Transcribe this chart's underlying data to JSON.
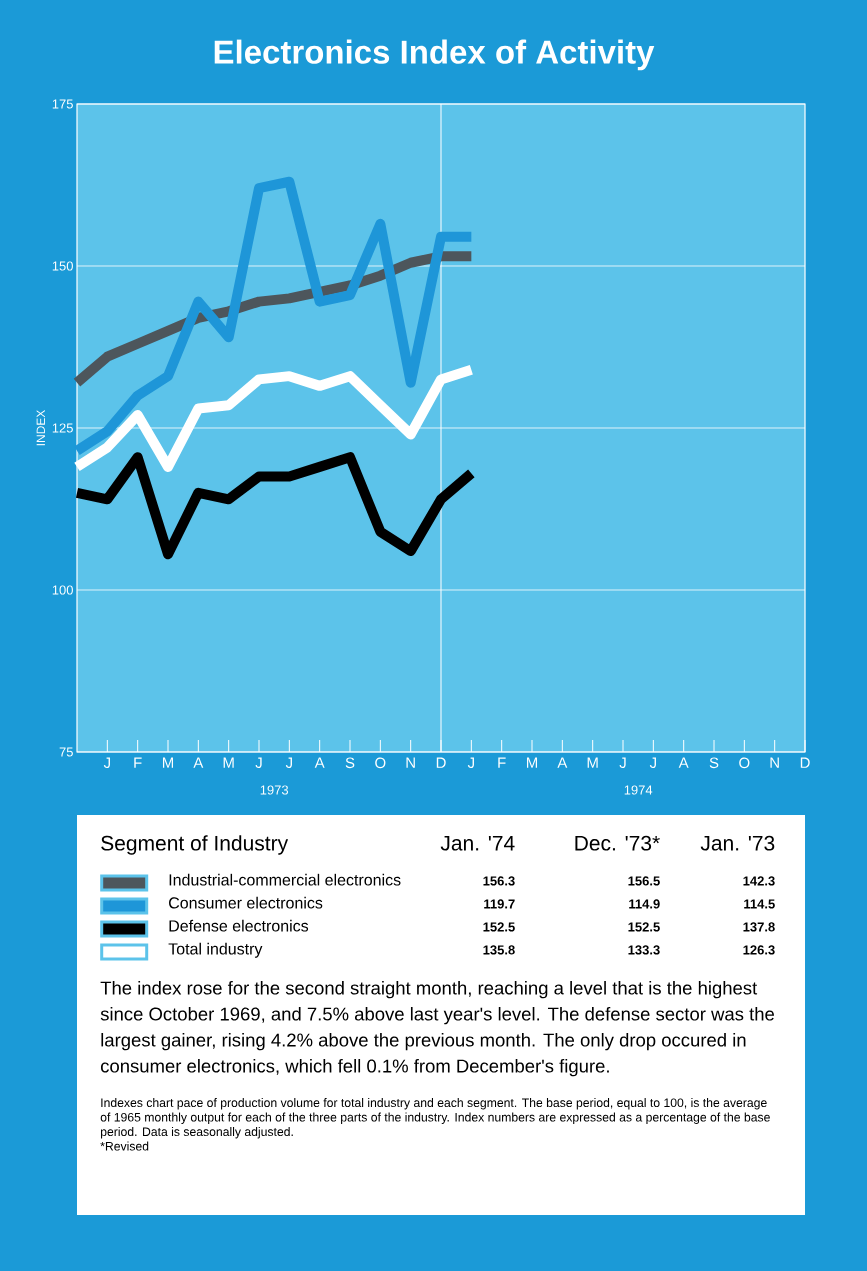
{
  "chart_data": {
    "type": "line",
    "title": "Electronics Index of Activity",
    "ylabel": "INDEX",
    "categories": [
      null,
      "J",
      "F",
      "M",
      "A",
      "M",
      "J",
      "J",
      "A",
      "S",
      "O",
      "N",
      "D",
      "J",
      "F",
      "M",
      "A",
      "M",
      "J",
      "J",
      "A",
      "S",
      "O",
      "N",
      "D"
    ],
    "series": [
      {
        "name": "Industrial-commercial electronics",
        "color": "#4d565c",
        "values": [
          132,
          136,
          138,
          140,
          142,
          143,
          144.5,
          145,
          146,
          147,
          148.5,
          150.5,
          151.5,
          151.5,
          null,
          null,
          null,
          null,
          null,
          null,
          null,
          null,
          null,
          null,
          null
        ]
      },
      {
        "name": "Consumer electronics",
        "color": "#1e96d8",
        "values": [
          121.5,
          124.5,
          130,
          133,
          144.5,
          139,
          162,
          163,
          144.5,
          145.5,
          156.5,
          132,
          154.5,
          154.5,
          null,
          null,
          null,
          null,
          null,
          null,
          null,
          null,
          null,
          null,
          null
        ]
      },
      {
        "name": "Defense electronics",
        "color": "#000000",
        "values": [
          115,
          114,
          120.5,
          105.5,
          115,
          114,
          117.5,
          117.5,
          119,
          120.5,
          109,
          106,
          114,
          118,
          null,
          null,
          null,
          null,
          null,
          null,
          null,
          null,
          null,
          null,
          null
        ]
      },
      {
        "name": "Total industry",
        "color": "#ffffff",
        "values": [
          119,
          122,
          127,
          119,
          128,
          128.5,
          132.5,
          133,
          131.5,
          133,
          128.5,
          124,
          132.5,
          134,
          null,
          null,
          null,
          null,
          null,
          null,
          null,
          null,
          null,
          null,
          null
        ]
      }
    ],
    "ylim": [
      75,
      175
    ],
    "yticks": [
      75,
      100,
      125,
      150,
      175
    ],
    "grid": "y",
    "legend": "bottom",
    "ref_lines": [
      {
        "axis": "x",
        "value": "D",
        "color": "#ffffff"
      }
    ],
    "annotations": [
      "1973",
      "1974",
      "Segment of Industry",
      "Jan. '74",
      "Dec. '73*",
      "Jan. '73",
      "156.3",
      "156.5",
      "142.3",
      "119.7",
      "114.9",
      "114.5",
      "152.5",
      "152.5",
      "137.8",
      "135.8",
      "133.3",
      "126.3",
      "The index rose for the second straight month, reaching a level that is the highest since October 1969, and 7.5% above last year's level. The defense sector was the largest gainer, rising 4.2% above the previous month. The only drop occured in consumer electronics, which fell 0.1% from December's figure.",
      "Indexes chart pace of production volume for total industry and each segment. The base period, equal to 100, is the average of 1965 monthly output for each of the three parts of the industry. Index numbers are expressed as a percentage of the base period. Data is seasonally adjusted.",
      "*Revised"
    ]
  }
}
